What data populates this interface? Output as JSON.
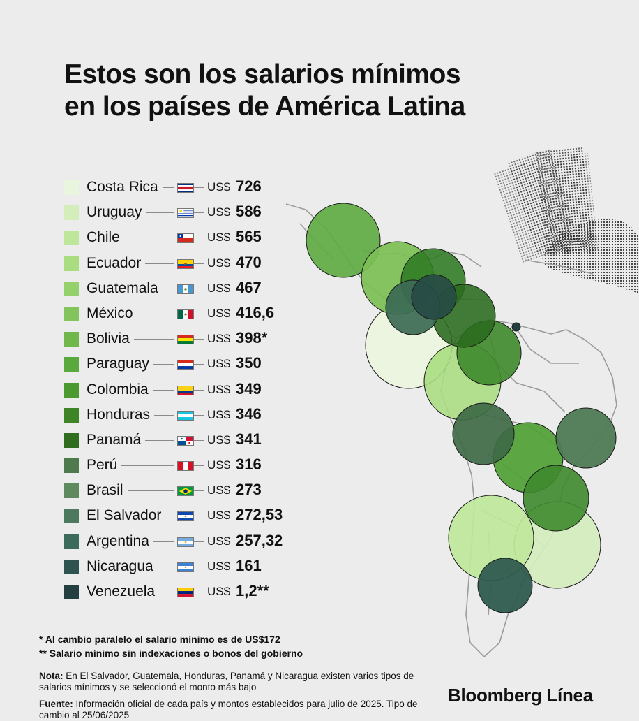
{
  "title": {
    "line1": "Estos son los salarios mínimos",
    "line2": "en los países de América Latina"
  },
  "chart_data": {
    "type": "bar",
    "title": "Estos son los salarios mínimos en los países de América Latina",
    "currency": "US$",
    "categories": [
      "Costa Rica",
      "Uruguay",
      "Chile",
      "Ecuador",
      "Guatemala",
      "México",
      "Bolivia",
      "Paraguay",
      "Colombia",
      "Honduras",
      "Panamá",
      "Perú",
      "Brasil",
      "El Salvador",
      "Argentina",
      "Nicaragua",
      "Venezuela"
    ],
    "values": [
      726,
      586,
      565,
      470,
      467,
      416.6,
      398,
      350,
      349,
      346,
      341,
      316,
      273,
      272.53,
      257.32,
      161,
      1.2
    ],
    "value_labels": [
      "726",
      "586",
      "565",
      "470",
      "467",
      "416,6",
      "398*",
      "350",
      "349",
      "346",
      "341",
      "316",
      "273",
      "272,53",
      "257,32",
      "161",
      "1,2**"
    ],
    "colors": [
      "#eaf5dd",
      "#d3edbb",
      "#bfe79b",
      "#a9dd7f",
      "#95d16a",
      "#84c45c",
      "#70b84a",
      "#5aa93c",
      "#4b9a30",
      "#3d8527",
      "#2f6e1f",
      "#4f7a4e",
      "#5f8a5f",
      "#4d7a5e",
      "#3c6a5b",
      "#2f5450",
      "#243f3f"
    ]
  },
  "legend": [
    {
      "country": "Costa Rica",
      "currency": "US$",
      "value": "726",
      "flag": "costa-rica-flag-icon"
    },
    {
      "country": "Uruguay",
      "currency": "US$",
      "value": "586",
      "flag": "uruguay-flag-icon"
    },
    {
      "country": "Chile",
      "currency": "US$",
      "value": "565",
      "flag": "chile-flag-icon"
    },
    {
      "country": "Ecuador",
      "currency": "US$",
      "value": "470",
      "flag": "ecuador-flag-icon"
    },
    {
      "country": "Guatemala",
      "currency": "US$",
      "value": "467",
      "flag": "guatemala-flag-icon"
    },
    {
      "country": "México",
      "currency": "US$",
      "value": "416,6",
      "flag": "mexico-flag-icon"
    },
    {
      "country": "Bolivia",
      "currency": "US$",
      "value": "398*",
      "flag": "bolivia-flag-icon"
    },
    {
      "country": "Paraguay",
      "currency": "US$",
      "value": "350",
      "flag": "paraguay-flag-icon"
    },
    {
      "country": "Colombia",
      "currency": "US$",
      "value": "349",
      "flag": "colombia-flag-icon"
    },
    {
      "country": "Honduras",
      "currency": "US$",
      "value": "346",
      "flag": "honduras-flag-icon"
    },
    {
      "country": "Panamá",
      "currency": "US$",
      "value": "341",
      "flag": "panama-flag-icon"
    },
    {
      "country": "Perú",
      "currency": "US$",
      "value": "316",
      "flag": "peru-flag-icon"
    },
    {
      "country": "Brasil",
      "currency": "US$",
      "value": "273",
      "flag": "brazil-flag-icon"
    },
    {
      "country": "El Salvador",
      "currency": "US$",
      "value": "272,53",
      "flag": "el-salvador-flag-icon"
    },
    {
      "country": "Argentina",
      "currency": "US$",
      "value": "257,32",
      "flag": "argentina-flag-icon"
    },
    {
      "country": "Nicaragua",
      "currency": "US$",
      "value": "161",
      "flag": "nicaragua-flag-icon"
    },
    {
      "country": "Venezuela",
      "currency": "US$",
      "value": "1,2**",
      "flag": "venezuela-flag-icon"
    }
  ],
  "footnotes": {
    "note1": "* Al cambio paralelo el salario mínimo es de US$172",
    "note2": "** Salario mínimo sin indexaciones o bonos del gobierno",
    "nota_label": "Nota:",
    "nota_text": " En El Salvador, Guatemala, Honduras, Panamá y Nicaragua existen varios tipos de salarios mínimos y se seleccionó el monto más bajo",
    "fuente_label": "Fuente:",
    "fuente_text": " Información oficial de cada país y montos establecidos para julio de 2025. Tipo de cambio al 25/06/2025"
  },
  "brand": "Bloomberg Línea"
}
